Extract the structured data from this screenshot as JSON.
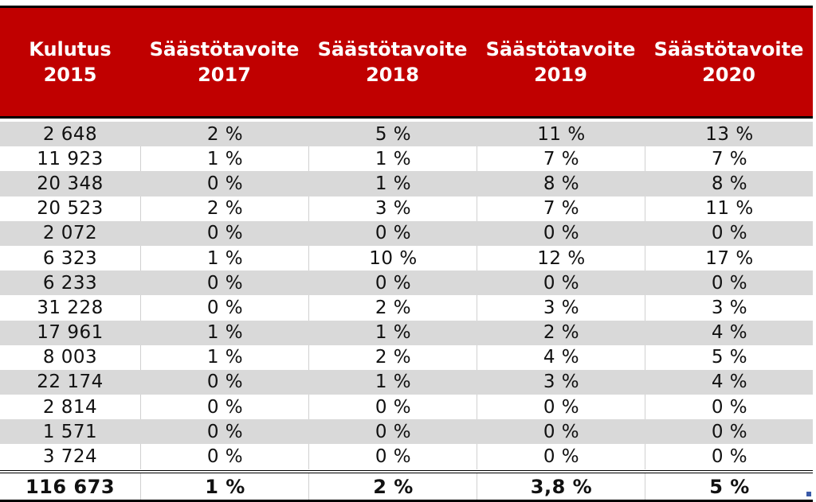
{
  "header": {
    "columns": [
      {
        "line1": "Kulutus",
        "line2": "2015"
      },
      {
        "line1": "Säästötavoite",
        "line2": "2017"
      },
      {
        "line1": "Säästötavoite",
        "line2": "2018"
      },
      {
        "line1": "Säästötavoite",
        "line2": "2019"
      },
      {
        "line1": "Säästötavoite",
        "line2": "2020"
      }
    ]
  },
  "rows": [
    [
      "2 648",
      "2 %",
      "5 %",
      "11 %",
      "13 %"
    ],
    [
      "11 923",
      "1 %",
      "1 %",
      "7 %",
      "7 %"
    ],
    [
      "20 348",
      "0 %",
      "1 %",
      "8 %",
      "8 %"
    ],
    [
      "20 523",
      "2 %",
      "3 %",
      "7 %",
      "11 %"
    ],
    [
      "2 072",
      "0 %",
      "0 %",
      "0 %",
      "0 %"
    ],
    [
      "6 323",
      "1 %",
      "10 %",
      "12 %",
      "17 %"
    ],
    [
      "6 233",
      "0 %",
      "0 %",
      "0 %",
      "0 %"
    ],
    [
      "31 228",
      "0 %",
      "2 %",
      "3 %",
      "3 %"
    ],
    [
      "17 961",
      "1 %",
      "1 %",
      "2 %",
      "4 %"
    ],
    [
      "8 003",
      "1 %",
      "2 %",
      "4 %",
      "5 %"
    ],
    [
      "22 174",
      "0 %",
      "1 %",
      "3 %",
      "4 %"
    ],
    [
      "2 814",
      "0 %",
      "0 %",
      "0 %",
      "0 %"
    ],
    [
      "1 571",
      "0 %",
      "0 %",
      "0 %",
      "0 %"
    ],
    [
      "3 724",
      "0 %",
      "0 %",
      "0 %",
      "0 %"
    ]
  ],
  "total": [
    "116 673",
    "1 %",
    "2 %",
    "3,8 %",
    "5 %"
  ],
  "colors": {
    "header_bg": "#c00000",
    "header_text": "#ffffff",
    "stripe": "#d9d9d9"
  }
}
